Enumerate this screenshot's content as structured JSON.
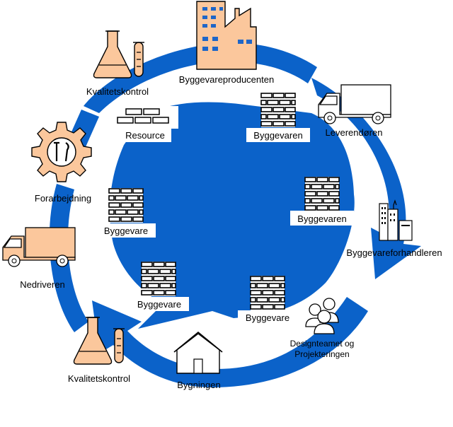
{
  "colors": {
    "arrow_blue": "#0b62c9",
    "icon_fill": "#fbc79c",
    "outline": "#000000",
    "window_blue": "#1e66c8"
  },
  "nodes": {
    "producer": {
      "label": "Byggevareproducenten",
      "icon": "factory-icon"
    },
    "supplier": {
      "label": "Leverendøren",
      "icon": "truck-icon"
    },
    "dealer": {
      "label": "Byggevareforhandleren",
      "icon": "office-buildings-icon"
    },
    "designteam": {
      "label_line1": "Designteamet og",
      "label_line2": "Projekteringen",
      "icon": "users-icon"
    },
    "building": {
      "label": "Bygningen",
      "icon": "house-icon"
    },
    "qc_bottom": {
      "label": "Kvalitetskontrol",
      "icon": "flask-icon"
    },
    "demolisher": {
      "label": "Nedriveren",
      "icon": "truck-icon"
    },
    "preparation": {
      "label": "Forarbejdning",
      "icon": "gear-tools-icon"
    },
    "qc_top": {
      "label": "Kvalitetskontrol",
      "icon": "flask-icon"
    }
  },
  "materials": {
    "resource": {
      "label": "Resource",
      "icon": "brick-icon"
    },
    "product_top": {
      "label": "Byggevaren",
      "icon": "brick-wall-icon"
    },
    "product_right": {
      "label": "Byggevaren",
      "icon": "brick-wall-icon"
    },
    "product_bottom_right": {
      "label": "Byggevare",
      "icon": "brick-wall-icon"
    },
    "product_bottom_left": {
      "label": "Byggevare",
      "icon": "brick-wall-icon"
    },
    "product_left": {
      "label": "Byggevare",
      "icon": "brick-wall-icon"
    }
  }
}
